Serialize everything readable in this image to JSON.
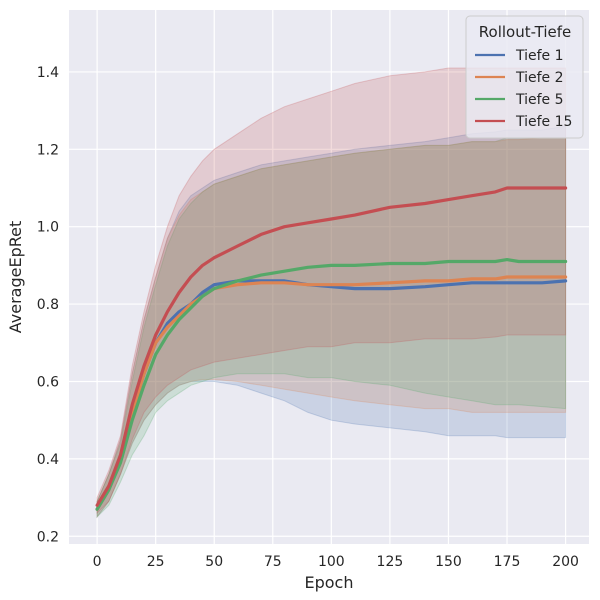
{
  "chart_data": {
    "type": "line",
    "xlabel": "Epoch",
    "ylabel": "AverageEpRet",
    "xlim": [
      -12,
      210
    ],
    "ylim": [
      0.18,
      1.56
    ],
    "xticks": [
      "0",
      "25",
      "50",
      "75",
      "100",
      "125",
      "150",
      "175",
      "200"
    ],
    "yticks": [
      "0.2",
      "0.4",
      "0.6",
      "0.8",
      "1.0",
      "1.2",
      "1.4"
    ],
    "grid": true,
    "background": "#eaeaf2",
    "legend": {
      "title": "Rollout-Tiefe",
      "placement": "top-right"
    },
    "x": [
      0,
      5,
      10,
      15,
      20,
      25,
      30,
      35,
      40,
      45,
      50,
      60,
      70,
      80,
      90,
      100,
      110,
      125,
      140,
      150,
      160,
      170,
      175,
      180,
      190,
      200
    ],
    "series": [
      {
        "name": "Tiefe 1",
        "color": "#4c72b0",
        "values": [
          0.27,
          0.32,
          0.4,
          0.52,
          0.62,
          0.7,
          0.75,
          0.78,
          0.8,
          0.83,
          0.85,
          0.86,
          0.86,
          0.86,
          0.85,
          0.845,
          0.84,
          0.84,
          0.845,
          0.85,
          0.855,
          0.855,
          0.855,
          0.855,
          0.855,
          0.86
        ],
        "upper": [
          0.29,
          0.36,
          0.45,
          0.62,
          0.76,
          0.87,
          0.97,
          1.04,
          1.08,
          1.1,
          1.12,
          1.14,
          1.16,
          1.17,
          1.18,
          1.19,
          1.2,
          1.21,
          1.22,
          1.23,
          1.24,
          1.245,
          1.25,
          1.25,
          1.25,
          1.26
        ],
        "lower": [
          0.25,
          0.29,
          0.36,
          0.44,
          0.5,
          0.54,
          0.57,
          0.59,
          0.6,
          0.6,
          0.6,
          0.59,
          0.57,
          0.55,
          0.52,
          0.5,
          0.49,
          0.48,
          0.47,
          0.46,
          0.46,
          0.46,
          0.455,
          0.455,
          0.455,
          0.455
        ]
      },
      {
        "name": "Tiefe 2",
        "color": "#dd8452",
        "values": [
          0.27,
          0.32,
          0.4,
          0.52,
          0.62,
          0.7,
          0.74,
          0.77,
          0.8,
          0.82,
          0.84,
          0.85,
          0.855,
          0.855,
          0.85,
          0.85,
          0.85,
          0.855,
          0.86,
          0.86,
          0.865,
          0.865,
          0.87,
          0.87,
          0.87,
          0.87
        ],
        "upper": [
          0.29,
          0.36,
          0.45,
          0.62,
          0.76,
          0.87,
          0.97,
          1.03,
          1.07,
          1.09,
          1.11,
          1.13,
          1.15,
          1.16,
          1.17,
          1.18,
          1.19,
          1.2,
          1.21,
          1.21,
          1.22,
          1.22,
          1.225,
          1.225,
          1.23,
          1.23
        ],
        "lower": [
          0.25,
          0.29,
          0.36,
          0.44,
          0.5,
          0.54,
          0.57,
          0.59,
          0.6,
          0.605,
          0.605,
          0.6,
          0.59,
          0.58,
          0.57,
          0.56,
          0.55,
          0.54,
          0.53,
          0.53,
          0.52,
          0.52,
          0.52,
          0.52,
          0.52,
          0.52
        ]
      },
      {
        "name": "Tiefe 5",
        "color": "#55a868",
        "values": [
          0.27,
          0.32,
          0.39,
          0.5,
          0.59,
          0.67,
          0.72,
          0.76,
          0.79,
          0.82,
          0.84,
          0.86,
          0.875,
          0.885,
          0.895,
          0.9,
          0.9,
          0.905,
          0.905,
          0.91,
          0.91,
          0.91,
          0.915,
          0.91,
          0.91,
          0.91
        ],
        "upper": [
          0.29,
          0.36,
          0.44,
          0.6,
          0.74,
          0.85,
          0.95,
          1.02,
          1.06,
          1.09,
          1.11,
          1.13,
          1.15,
          1.16,
          1.17,
          1.18,
          1.19,
          1.2,
          1.21,
          1.21,
          1.22,
          1.22,
          1.23,
          1.23,
          1.23,
          1.23
        ],
        "lower": [
          0.25,
          0.28,
          0.34,
          0.41,
          0.46,
          0.52,
          0.55,
          0.57,
          0.59,
          0.6,
          0.61,
          0.62,
          0.62,
          0.62,
          0.61,
          0.61,
          0.6,
          0.59,
          0.57,
          0.56,
          0.55,
          0.54,
          0.54,
          0.54,
          0.535,
          0.53
        ]
      },
      {
        "name": "Tiefe 15",
        "color": "#c44e52",
        "values": [
          0.28,
          0.33,
          0.41,
          0.54,
          0.64,
          0.72,
          0.78,
          0.83,
          0.87,
          0.9,
          0.92,
          0.95,
          0.98,
          1.0,
          1.01,
          1.02,
          1.03,
          1.05,
          1.06,
          1.07,
          1.08,
          1.09,
          1.1,
          1.1,
          1.1,
          1.1
        ],
        "upper": [
          0.3,
          0.37,
          0.46,
          0.64,
          0.78,
          0.9,
          1.0,
          1.08,
          1.13,
          1.17,
          1.2,
          1.24,
          1.28,
          1.31,
          1.33,
          1.35,
          1.37,
          1.39,
          1.4,
          1.41,
          1.41,
          1.41,
          1.41,
          1.41,
          1.41,
          1.41
        ],
        "lower": [
          0.26,
          0.29,
          0.36,
          0.45,
          0.52,
          0.56,
          0.59,
          0.61,
          0.63,
          0.64,
          0.65,
          0.66,
          0.67,
          0.68,
          0.69,
          0.69,
          0.7,
          0.7,
          0.71,
          0.71,
          0.71,
          0.715,
          0.72,
          0.72,
          0.72,
          0.72
        ]
      }
    ]
  }
}
